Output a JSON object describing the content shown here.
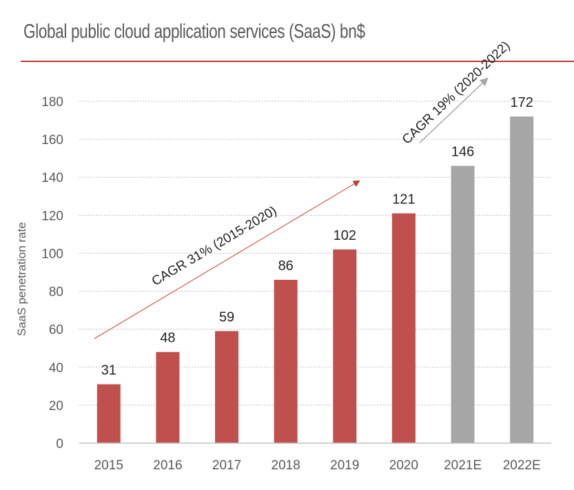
{
  "header": {
    "title": "Global public cloud application services (SaaS) bn$"
  },
  "colors": {
    "actual": "#c0504d",
    "estimate": "#a6a6a6",
    "rule": "#c0392b",
    "grid": "#bfbfbf"
  },
  "chart_data": {
    "type": "bar",
    "title": "Global public cloud application services (SaaS) bn$",
    "xlabel": "",
    "ylabel": "SaaS penetration rate",
    "categories": [
      "2015",
      "2016",
      "2017",
      "2018",
      "2019",
      "2020",
      "2021E",
      "2022E"
    ],
    "values": [
      31,
      48,
      59,
      86,
      102,
      121,
      146,
      172
    ],
    "data_labels": [
      "31",
      "48",
      "59",
      "86",
      "102",
      "121",
      "146",
      "172"
    ],
    "bar_kind": [
      "actual",
      "actual",
      "actual",
      "actual",
      "actual",
      "actual",
      "estimate",
      "estimate"
    ],
    "ylim": [
      0,
      180
    ],
    "yticks": [
      0,
      20,
      40,
      60,
      80,
      100,
      120,
      140,
      160,
      180
    ],
    "grid": "horizontal dashed",
    "annotations": [
      {
        "text": "CAGR 31% (2015-2020)",
        "from": [
          "2015",
          55
        ],
        "to": [
          "2020",
          138
        ],
        "color": "#c0392b"
      },
      {
        "text": "CAGR 19% (2020-2022)",
        "from": [
          "2021E",
          158
        ],
        "to": [
          "2022E",
          192
        ],
        "color": "#a6a6a6"
      }
    ]
  }
}
